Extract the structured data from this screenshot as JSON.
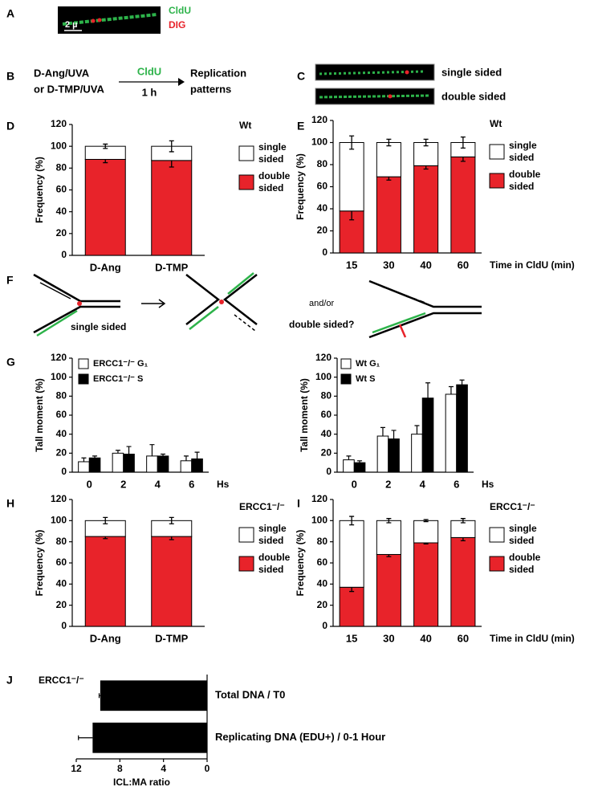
{
  "panel_labels": [
    "A",
    "B",
    "C",
    "D",
    "E",
    "F",
    "G",
    "H",
    "I",
    "J"
  ],
  "panel_a": {
    "channels": [
      "CldU",
      "DIG"
    ],
    "scale_bar": "2 µ"
  },
  "panel_b": {
    "treatment": [
      "D-Ang/UVA",
      "or D-TMP/UVA"
    ],
    "pulse": "CldU",
    "duration": "1 h",
    "result": [
      "Replication",
      "patterns"
    ]
  },
  "panel_c": {
    "labels": [
      "single sided",
      "double sided"
    ]
  },
  "panel_f": {
    "labels": [
      "single sided",
      "and/or",
      "double sided?"
    ]
  },
  "chart_data": [
    {
      "type": "stacked_bar",
      "annotation": "Wt",
      "y_label": "Frequency (%)",
      "categories": [
        "D-Ang",
        "D-TMP"
      ],
      "ylim": [
        0,
        120
      ],
      "yticks": [
        0,
        20,
        40,
        60,
        80,
        100,
        120
      ],
      "series": [
        {
          "name": "double sided",
          "color": "#e8232a",
          "values": [
            88,
            87
          ],
          "errors": [
            3,
            6
          ]
        },
        {
          "name": "single sided",
          "color": "#ffffff",
          "values": [
            12,
            13
          ],
          "errors": [
            2,
            5
          ]
        }
      ]
    },
    {
      "type": "stacked_bar",
      "annotation": "Wt",
      "y_label": "Frequency (%)",
      "x_label": "Time in CldU (min)",
      "categories": [
        "15",
        "30",
        "40",
        "60"
      ],
      "ylim": [
        0,
        120
      ],
      "yticks": [
        0,
        20,
        40,
        60,
        80,
        100,
        120
      ],
      "series": [
        {
          "name": "double sided",
          "color": "#e8232a",
          "values": [
            38,
            69,
            79,
            87
          ],
          "errors": [
            8,
            3,
            3,
            4
          ]
        },
        {
          "name": "single sided",
          "color": "#ffffff",
          "values": [
            62,
            31,
            21,
            13
          ],
          "errors": [
            6,
            3,
            3,
            5
          ]
        }
      ]
    },
    {
      "type": "grouped_bar",
      "y_label": "Tall moment (%)",
      "x_label": "Hs",
      "categories": [
        "0",
        "2",
        "4",
        "6"
      ],
      "ylim": [
        0,
        120
      ],
      "yticks": [
        0,
        20,
        40,
        60,
        80,
        100,
        120
      ],
      "series": [
        {
          "name": "ERCC1⁻/⁻ G₁",
          "color": "#ffffff",
          "values": [
            11,
            20,
            17,
            12
          ],
          "errors": [
            4,
            3,
            12,
            5
          ]
        },
        {
          "name": "ERCC1⁻/⁻ S",
          "color": "#000000",
          "values": [
            15,
            19,
            17,
            14
          ],
          "errors": [
            2,
            8,
            2,
            7
          ]
        }
      ]
    },
    {
      "type": "grouped_bar",
      "y_label": "Tall moment (%)",
      "x_label": "Hs",
      "categories": [
        "0",
        "2",
        "4",
        "6"
      ],
      "ylim": [
        0,
        120
      ],
      "yticks": [
        0,
        20,
        40,
        60,
        80,
        100,
        120
      ],
      "series": [
        {
          "name": "Wt G₁",
          "color": "#ffffff",
          "values": [
            13,
            38,
            40,
            82
          ],
          "errors": [
            4,
            9,
            9,
            8
          ]
        },
        {
          "name": "Wt S",
          "color": "#000000",
          "values": [
            10,
            35,
            78,
            92
          ],
          "errors": [
            2,
            9,
            16,
            5
          ]
        }
      ]
    },
    {
      "type": "stacked_bar",
      "annotation": "ERCC1⁻/⁻",
      "y_label": "Frequency (%)",
      "categories": [
        "D-Ang",
        "D-TMP"
      ],
      "ylim": [
        0,
        120
      ],
      "yticks": [
        0,
        20,
        40,
        60,
        80,
        100,
        120
      ],
      "series": [
        {
          "name": "double sided",
          "color": "#e8232a",
          "values": [
            85,
            85
          ],
          "errors": [
            2,
            3
          ]
        },
        {
          "name": "single sided",
          "color": "#ffffff",
          "values": [
            15,
            15
          ],
          "errors": [
            3,
            3
          ]
        }
      ]
    },
    {
      "type": "stacked_bar",
      "annotation": "ERCC1⁻/⁻",
      "y_label": "Frequency (%)",
      "x_label": "Time in CldU (min)",
      "categories": [
        "15",
        "30",
        "40",
        "60"
      ],
      "ylim": [
        0,
        120
      ],
      "yticks": [
        0,
        20,
        40,
        60,
        80,
        100,
        120
      ],
      "series": [
        {
          "name": "double sided",
          "color": "#e8232a",
          "values": [
            37,
            68,
            79,
            84
          ],
          "errors": [
            4,
            2,
            1,
            3
          ]
        },
        {
          "name": "single sided",
          "color": "#ffffff",
          "values": [
            63,
            32,
            21,
            16
          ],
          "errors": [
            4,
            2,
            1,
            2
          ]
        }
      ]
    },
    {
      "type": "horizontal_bar",
      "annotation": "ERCC1⁻/⁻",
      "x_label": "ICL:MA ratio",
      "categories": [
        "Total DNA / T0",
        "Replicating DNA (EDU+) / 0-1 Hour"
      ],
      "values": [
        9.8,
        10.5
      ],
      "errors": [
        0.1,
        1.3
      ],
      "color": "#000000",
      "xlim": [
        12,
        0
      ],
      "xticks": [
        12,
        8,
        4,
        0
      ]
    }
  ]
}
